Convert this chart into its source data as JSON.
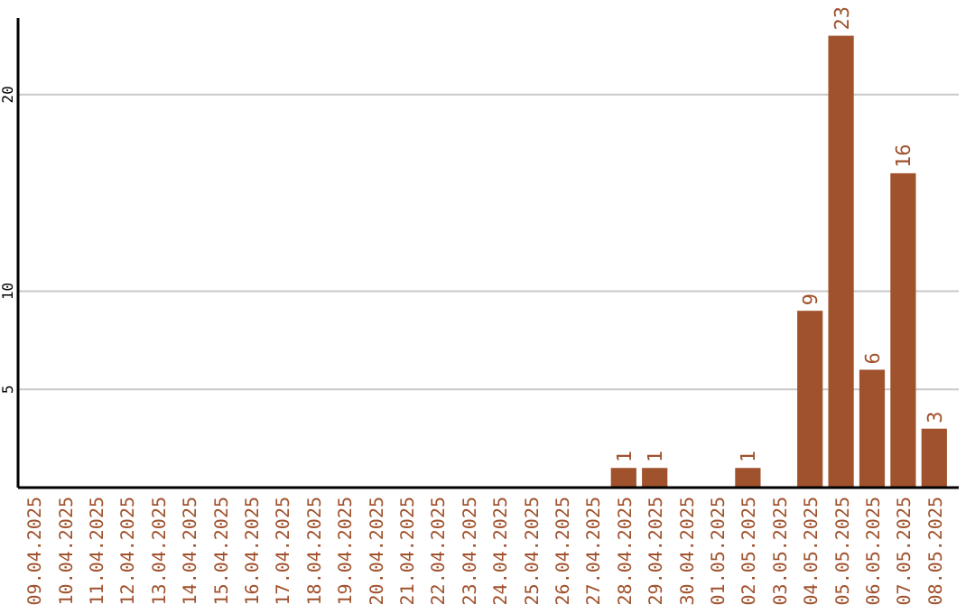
{
  "chart_data": {
    "type": "bar",
    "categories": [
      "09.04.2025",
      "10.04.2025",
      "11.04.2025",
      "12.04.2025",
      "13.04.2025",
      "14.04.2025",
      "15.04.2025",
      "16.04.2025",
      "17.04.2025",
      "18.04.2025",
      "19.04.2025",
      "20.04.2025",
      "21.04.2025",
      "22.04.2025",
      "23.04.2025",
      "24.04.2025",
      "25.04.2025",
      "26.04.2025",
      "27.04.2025",
      "28.04.2025",
      "29.04.2025",
      "30.04.2025",
      "01.05.2025",
      "02.05.2025",
      "03.05.2025",
      "04.05.2025",
      "05.05.2025",
      "06.05.2025",
      "07.05.2025",
      "08.05.2025"
    ],
    "values": [
      0,
      0,
      0,
      0,
      0,
      0,
      0,
      0,
      0,
      0,
      0,
      0,
      0,
      0,
      0,
      0,
      0,
      0,
      0,
      1,
      1,
      0,
      0,
      1,
      0,
      9,
      23,
      6,
      16,
      3
    ],
    "value_labels": [
      null,
      null,
      null,
      null,
      null,
      null,
      null,
      null,
      null,
      null,
      null,
      null,
      null,
      null,
      null,
      null,
      null,
      null,
      null,
      "1",
      "1",
      null,
      null,
      "1",
      null,
      "9",
      "23",
      "6",
      "16",
      "3"
    ],
    "color": "#a0522d",
    "ylim": [
      0,
      23.9
    ],
    "yticks": [
      5,
      10,
      20
    ],
    "grid": "y"
  }
}
